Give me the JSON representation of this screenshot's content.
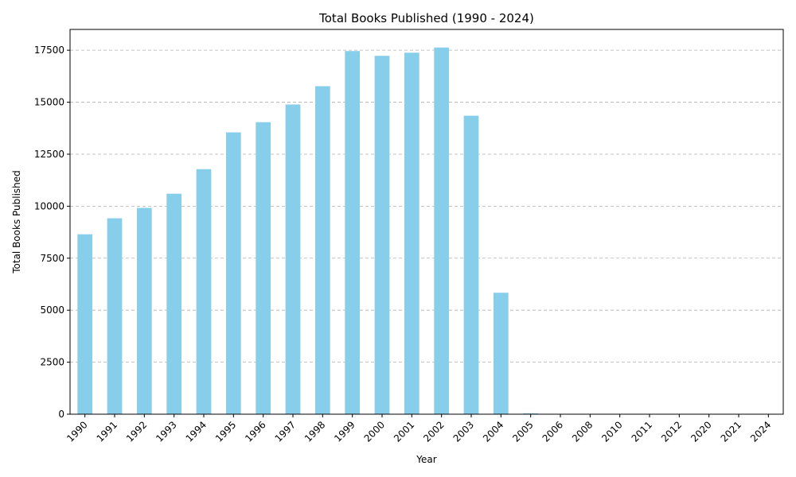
{
  "chart_data": {
    "type": "bar",
    "title": "Total Books Published (1990 - 2024)",
    "xlabel": "Year",
    "ylabel": "Total Books Published",
    "categories": [
      "1990",
      "1991",
      "1992",
      "1993",
      "1994",
      "1995",
      "1996",
      "1997",
      "1998",
      "1999",
      "2000",
      "2001",
      "2002",
      "2003",
      "2004",
      "2005",
      "2006",
      "2008",
      "2010",
      "2011",
      "2012",
      "2020",
      "2021",
      "2024"
    ],
    "values": [
      8650,
      9420,
      9920,
      10600,
      11780,
      13550,
      14040,
      14890,
      15770,
      17460,
      17230,
      17380,
      17630,
      14350,
      5840,
      40,
      3,
      2,
      2,
      2,
      1,
      1,
      1,
      1
    ],
    "ylim": [
      0,
      18500
    ],
    "yticks": [
      0,
      2500,
      5000,
      7500,
      10000,
      12500,
      15000,
      17500
    ],
    "bar_color": "#87ceeb",
    "grid": "y-dashed",
    "legend": "none"
  }
}
